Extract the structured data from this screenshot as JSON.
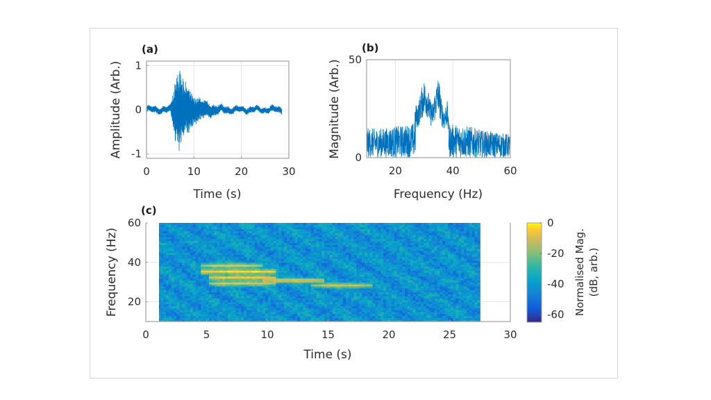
{
  "chart_data": [
    {
      "id": "a",
      "panel_label": "(a)",
      "type": "line",
      "title": "",
      "xlabel": "Time (s)",
      "ylabel": "Amplitude (Arb.)",
      "xlim": [
        0,
        30
      ],
      "ylim": [
        -1.1,
        1.1
      ],
      "xticks": [
        "0",
        "10",
        "20",
        "30"
      ],
      "xtick_values": [
        0,
        10,
        20,
        30
      ],
      "yticks": [
        "-1",
        "0",
        "1"
      ],
      "ytick_values": [
        -1,
        0,
        1
      ],
      "grid": true,
      "series": [
        {
          "name": "waveform",
          "color": "#0072BD",
          "envelope_t": [
            0,
            5,
            5.5,
            6,
            6.5,
            7,
            7.5,
            8,
            8.5,
            9,
            9.5,
            10,
            11,
            12,
            13,
            14,
            15,
            16,
            18,
            20,
            22,
            24,
            26,
            28.5
          ],
          "envelope_amp": [
            0.08,
            0.08,
            0.35,
            0.7,
            0.85,
            0.95,
            0.85,
            0.7,
            0.6,
            0.55,
            0.45,
            0.35,
            0.28,
            0.22,
            0.18,
            0.15,
            0.12,
            0.1,
            0.08,
            0.07,
            0.08,
            0.07,
            0.08,
            0.08
          ],
          "duration": 28.5
        }
      ]
    },
    {
      "id": "b",
      "panel_label": "(b)",
      "type": "line",
      "title": "",
      "xlabel": "Frequency (Hz)",
      "ylabel": "Magnitude (Arb.)",
      "xlim": [
        10,
        60
      ],
      "ylim": [
        0,
        50
      ],
      "xticks": [
        "20",
        "40",
        "60"
      ],
      "xtick_values": [
        20,
        40,
        60
      ],
      "yticks": [
        "0",
        "50"
      ],
      "ytick_values": [
        0,
        50
      ],
      "grid": true,
      "series": [
        {
          "name": "spectrum",
          "color": "#0072BD",
          "envelope_f": [
            10,
            15,
            20,
            25,
            26.5,
            27,
            28,
            29,
            30,
            31,
            32,
            33,
            34,
            35,
            36,
            37,
            38,
            38.5,
            39,
            42,
            46,
            50,
            55,
            60
          ],
          "envelope_mag": [
            15,
            15,
            16,
            17,
            18,
            27,
            28,
            35,
            40,
            38,
            30,
            28,
            36,
            42,
            30,
            25,
            30,
            20,
            17,
            17,
            16,
            14,
            13,
            12
          ]
        }
      ]
    },
    {
      "id": "c",
      "panel_label": "(c)",
      "type": "heatmap",
      "title": "",
      "xlabel": "Time (s)",
      "ylabel": "Frequency (Hz)",
      "xlim": [
        0,
        30
      ],
      "ylim": [
        10,
        60
      ],
      "data_xrange": [
        1,
        27.5
      ],
      "xticks": [
        "0",
        "5",
        "10",
        "15",
        "20",
        "25",
        "30"
      ],
      "xtick_values": [
        0,
        5,
        10,
        15,
        20,
        25,
        30
      ],
      "yticks": [
        "20",
        "40",
        "60"
      ],
      "ytick_values": [
        20,
        40,
        60
      ],
      "grid": true,
      "colormap": "parula",
      "colorbar": {
        "label_line1": "Normalised Mag.",
        "label_line2": "(dB, arb.)",
        "ticks": [
          "0",
          "-20",
          "-40",
          "-60"
        ],
        "tick_values": [
          0,
          -20,
          -40,
          -60
        ],
        "range": [
          -65,
          0
        ]
      },
      "features": [
        {
          "t_start": 5,
          "t_end": 9,
          "f": 38,
          "level_db": -8
        },
        {
          "t_start": 5,
          "t_end": 10,
          "f": 35,
          "level_db": -3
        },
        {
          "t_start": 5.5,
          "t_end": 10,
          "f": 32,
          "level_db": -5
        },
        {
          "t_start": 10,
          "t_end": 14,
          "f": 30.5,
          "level_db": -6
        },
        {
          "t_start": 14,
          "t_end": 18,
          "f": 28,
          "level_db": -10
        },
        {
          "t_start": 5.5,
          "t_end": 10,
          "f": 29,
          "level_db": -8
        }
      ],
      "background_db": -42
    }
  ]
}
